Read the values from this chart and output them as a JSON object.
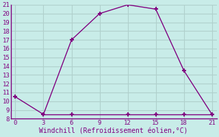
{
  "line1_x": [
    0,
    3,
    6,
    9,
    12,
    15,
    18,
    21
  ],
  "line1_y": [
    10.5,
    8.5,
    17.0,
    20.0,
    21.0,
    20.5,
    13.5,
    8.5
  ],
  "line2_x": [
    3,
    6,
    12,
    15,
    18,
    21
  ],
  "line2_y": [
    8.5,
    8.5,
    8.5,
    8.5,
    8.5,
    8.5
  ],
  "line_color": "#800080",
  "bg_color": "#c8ece8",
  "grid_color": "#b0d0cc",
  "xlabel": "Windchill (Refroidissement éolien,°C)",
  "xlabel_color": "#800080",
  "xlim": [
    -0.5,
    21.5
  ],
  "ylim": [
    8,
    21
  ],
  "xticks": [
    0,
    3,
    6,
    9,
    12,
    15,
    18,
    21
  ],
  "yticks": [
    8,
    9,
    10,
    11,
    12,
    13,
    14,
    15,
    16,
    17,
    18,
    19,
    20,
    21
  ],
  "marker": "+",
  "marker_size": 5,
  "marker_lw": 1.5,
  "line_width": 1.0,
  "tick_fontsize": 6.5,
  "xlabel_fontsize": 7.0,
  "tick_color": "#800080"
}
